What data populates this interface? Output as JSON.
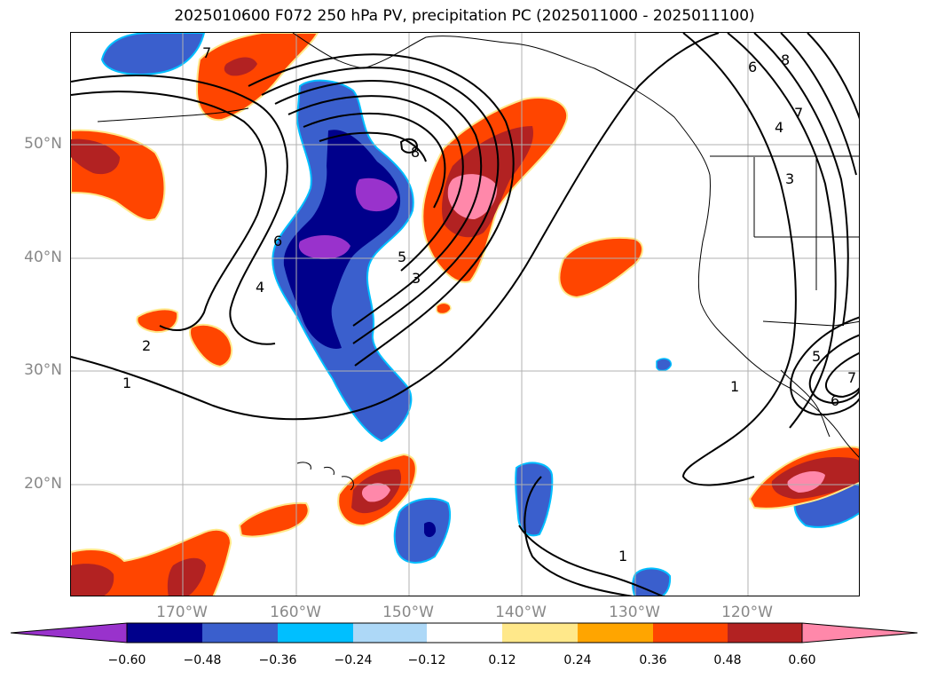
{
  "title": "2025010600 F072 250 hPa PV, precipitation PC (2025011000 - 2025011100)",
  "lat_labels": [
    "50°N",
    "40°N",
    "30°N",
    "20°N"
  ],
  "lon_labels": [
    "170°W",
    "160°W",
    "150°W",
    "140°W",
    "130°W",
    "120°W"
  ],
  "colorbar": {
    "ticks": [
      "−0.60",
      "−0.48",
      "−0.36",
      "−0.24",
      "−0.12",
      "0.12",
      "0.24",
      "0.36",
      "0.48",
      "0.60"
    ],
    "colors": [
      "#9932cc",
      "#00008b",
      "#3a5fcd",
      "#00bfff",
      "#add8f7",
      "#ffffff",
      "#ffe88a",
      "#ffa500",
      "#ff4500",
      "#b22222",
      "#ff88aa"
    ]
  },
  "contour_labels": [
    "7",
    "6",
    "8",
    "5",
    "4",
    "3",
    "2",
    "1",
    "1",
    "1",
    "6",
    "8",
    "7",
    "4",
    "3",
    "5",
    "6",
    "7"
  ],
  "colors": {
    "neg_strong": "#9932cc",
    "neg_dark": "#00008b",
    "neg_mid": "#3a5fcd",
    "neg_light": "#00bfff",
    "pos_yellow": "#ffe88a",
    "pos_orange": "#ff4500",
    "pos_red": "#b22222",
    "pos_pink": "#ff88aa"
  }
}
